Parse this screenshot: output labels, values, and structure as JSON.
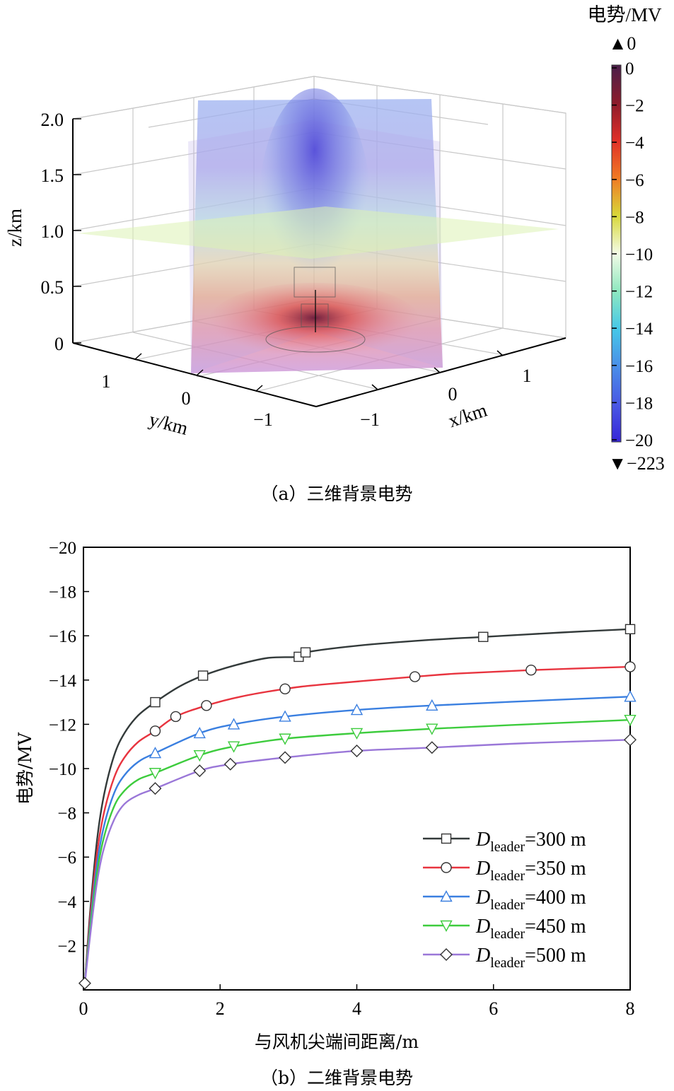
{
  "chart_data": [
    {
      "type": "heatmap",
      "title": "",
      "caption": "（a）三维背景电势",
      "xlabel": "x/km",
      "ylabel": "y/km",
      "zlabel": "z/km",
      "x_ticks": [
        "−1",
        "0",
        "1"
      ],
      "y_ticks": [
        "1",
        "0",
        "−1"
      ],
      "z_ticks": [
        "2.0",
        "1.5",
        "1.0",
        "0.5",
        "0"
      ],
      "xlim": [
        -1.5,
        1.5
      ],
      "ylim": [
        -1.5,
        1.5
      ],
      "zlim": [
        0,
        2.0
      ],
      "colorbar": {
        "title": "电势/MV",
        "max_label": "▲0",
        "min_label": "▼−223",
        "ticks": [
          "0",
          "−2",
          "−4",
          "−6",
          "−8",
          "−10",
          "−12",
          "−14",
          "−16",
          "−18",
          "−20"
        ],
        "range": [
          -20,
          0
        ]
      }
    },
    {
      "type": "line",
      "title": "",
      "caption": "（b）二维背景电势",
      "xlabel": "与风机尖端间距离/m",
      "ylabel": "电势/MV",
      "xlim": [
        0,
        8
      ],
      "ylim": [
        0,
        -20
      ],
      "x_ticks": [
        "0",
        "2",
        "4",
        "6",
        "8"
      ],
      "y_ticks": [
        "−20",
        "−18",
        "−16",
        "−14",
        "−12",
        "−10",
        "−8",
        "−6",
        "−4",
        "−2"
      ],
      "grid": false,
      "legend_position": "bottom-right",
      "legend_symbol": "D",
      "legend_subscript": "leader",
      "series": [
        {
          "name": "=300 m",
          "color": "#333a3a",
          "marker": "square",
          "x": [
            0.02,
            0.1,
            0.2,
            0.3,
            0.45,
            0.6,
            0.8,
            1.05,
            1.4,
            1.75,
            2.2,
            2.7,
            3.15,
            3.25,
            4.0,
            5.0,
            5.85,
            7.0,
            8.0
          ],
          "y": [
            -0.3,
            -3.6,
            -6.8,
            -8.8,
            -10.6,
            -11.6,
            -12.4,
            -13.0,
            -13.7,
            -14.2,
            -14.65,
            -15.0,
            -15.05,
            -15.25,
            -15.55,
            -15.8,
            -15.95,
            -16.15,
            -16.3
          ],
          "marker_x": [
            1.05,
            1.75,
            3.15,
            3.25,
            5.85,
            8.0
          ],
          "marker_y": [
            -13.0,
            -14.2,
            -15.05,
            -15.25,
            -15.95,
            -16.3
          ]
        },
        {
          "name": "=350 m",
          "color": "#e8343f",
          "marker": "circle",
          "x": [
            0.02,
            0.1,
            0.2,
            0.3,
            0.45,
            0.6,
            0.8,
            1.05,
            1.35,
            1.8,
            2.3,
            2.95,
            3.5,
            4.85,
            5.5,
            6.55,
            8.0
          ],
          "y": [
            -0.3,
            -3.3,
            -6.2,
            -8.0,
            -9.6,
            -10.5,
            -11.2,
            -11.7,
            -12.35,
            -12.85,
            -13.25,
            -13.6,
            -13.8,
            -14.15,
            -14.3,
            -14.45,
            -14.6
          ],
          "marker_x": [
            1.05,
            1.35,
            1.8,
            2.95,
            4.85,
            6.55,
            8.0
          ],
          "marker_y": [
            -11.7,
            -12.35,
            -12.85,
            -13.6,
            -14.15,
            -14.45,
            -14.6
          ]
        },
        {
          "name": "=400 m",
          "color": "#3a7fe0",
          "marker": "triangle-up",
          "x": [
            0.02,
            0.1,
            0.2,
            0.3,
            0.45,
            0.6,
            0.8,
            1.05,
            1.7,
            2.2,
            2.95,
            4.0,
            5.1,
            6.5,
            8.0
          ],
          "y": [
            -0.3,
            -3.0,
            -5.7,
            -7.4,
            -8.9,
            -9.7,
            -10.3,
            -10.7,
            -11.6,
            -12.0,
            -12.35,
            -12.65,
            -12.85,
            -13.05,
            -13.25
          ],
          "marker_x": [
            1.05,
            1.7,
            2.2,
            2.95,
            4.0,
            5.1,
            8.0
          ],
          "marker_y": [
            -10.7,
            -11.6,
            -12.0,
            -12.35,
            -12.65,
            -12.85,
            -13.25
          ]
        },
        {
          "name": "=450 m",
          "color": "#3dcc3d",
          "marker": "triangle-down",
          "x": [
            0.02,
            0.1,
            0.2,
            0.3,
            0.45,
            0.6,
            0.8,
            1.05,
            1.7,
            2.2,
            2.95,
            4.0,
            5.1,
            6.5,
            8.0
          ],
          "y": [
            -0.3,
            -2.8,
            -5.3,
            -6.9,
            -8.3,
            -9.0,
            -9.5,
            -9.8,
            -10.6,
            -11.0,
            -11.35,
            -11.6,
            -11.8,
            -12.0,
            -12.2
          ],
          "marker_x": [
            1.05,
            1.7,
            2.2,
            2.95,
            4.0,
            5.1,
            8.0
          ],
          "marker_y": [
            -9.8,
            -10.6,
            -11.0,
            -11.35,
            -11.6,
            -11.8,
            -12.2
          ]
        },
        {
          "name": "=500 m",
          "color": "#9a77d8",
          "marker": "diamond",
          "x": [
            0.02,
            0.1,
            0.2,
            0.3,
            0.45,
            0.6,
            0.8,
            1.05,
            1.7,
            2.15,
            2.95,
            4.0,
            5.1,
            6.5,
            8.0
          ],
          "y": [
            -0.3,
            -2.5,
            -4.9,
            -6.4,
            -7.7,
            -8.4,
            -8.8,
            -9.1,
            -9.9,
            -10.2,
            -10.5,
            -10.8,
            -10.95,
            -11.15,
            -11.3
          ],
          "marker_x": [
            0.02,
            1.05,
            1.7,
            2.15,
            2.95,
            4.0,
            5.1,
            8.0
          ],
          "marker_y": [
            -0.3,
            -9.1,
            -9.9,
            -10.2,
            -10.5,
            -10.8,
            -10.95,
            -11.3
          ]
        }
      ]
    }
  ]
}
